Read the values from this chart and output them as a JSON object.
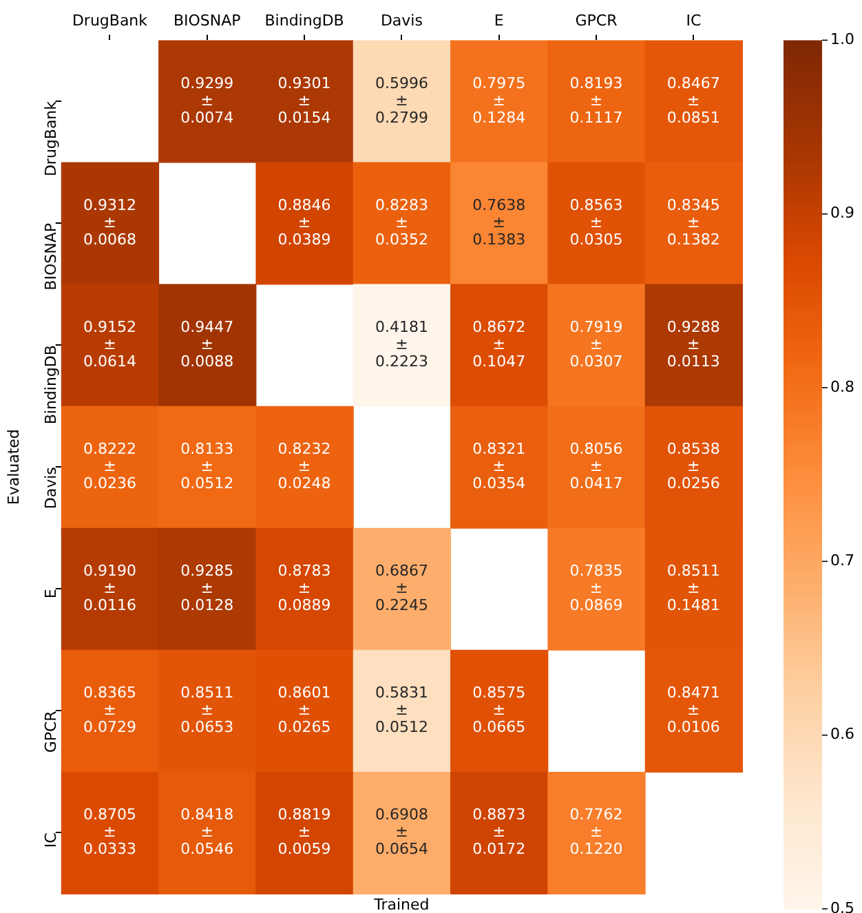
{
  "chart_data": {
    "type": "heatmap",
    "xlabel": "Trained",
    "ylabel": "Evaluated",
    "categories": [
      "DrugBank",
      "BIOSNAP",
      "BindingDB",
      "Davis",
      "E",
      "GPCR",
      "IC"
    ],
    "y_categories": [
      "DrugBank",
      "BIOSNAP",
      "BindingDB",
      "Davis",
      "E",
      "GPCR",
      "IC"
    ],
    "cells": [
      [
        null,
        0.9299,
        0.9301,
        0.5996,
        0.7975,
        0.8193,
        0.8467
      ],
      [
        0.9312,
        null,
        0.8846,
        0.8283,
        0.7638,
        0.8563,
        0.8345
      ],
      [
        0.9152,
        0.9447,
        null,
        0.4181,
        0.8672,
        0.7919,
        0.9288
      ],
      [
        0.8222,
        0.8133,
        0.8232,
        null,
        0.8321,
        0.8056,
        0.8538
      ],
      [
        0.919,
        0.9285,
        0.8783,
        0.6867,
        null,
        0.7835,
        0.8511
      ],
      [
        0.8365,
        0.8511,
        0.8601,
        0.5831,
        0.8575,
        null,
        0.8471
      ],
      [
        0.8705,
        0.8418,
        0.8819,
        0.6908,
        0.8873,
        0.7762,
        null
      ]
    ],
    "cell_labels": [
      [
        null,
        "0.9299\n±\n0.0074",
        "0.9301\n±\n0.0154",
        "0.5996\n±\n0.2799",
        "0.7975\n±\n0.1284",
        "0.8193\n±\n0.1117",
        "0.8467\n±\n0.0851"
      ],
      [
        "0.9312\n±\n0.0068",
        null,
        "0.8846\n±\n0.0389",
        "0.8283\n±\n0.0352",
        "0.7638\n±\n0.1383",
        "0.8563\n±\n0.0305",
        "0.8345\n±\n0.1382"
      ],
      [
        "0.9152\n±\n0.0614",
        "0.9447\n±\n0.0088",
        null,
        "0.4181\n±\n0.2223",
        "0.8672\n±\n0.1047",
        "0.7919\n±\n0.0307",
        "0.9288\n±\n0.0113"
      ],
      [
        "0.8222\n±\n0.0236",
        "0.8133\n±\n0.0512",
        "0.8232\n±\n0.0248",
        null,
        "0.8321\n±\n0.0354",
        "0.8056\n±\n0.0417",
        "0.8538\n±\n0.0256"
      ],
      [
        "0.9190\n±\n0.0116",
        "0.9285\n±\n0.0128",
        "0.8783\n±\n0.0889",
        "0.6867\n±\n0.2245",
        null,
        "0.7835\n±\n0.0869",
        "0.8511\n±\n0.1481"
      ],
      [
        "0.8365\n±\n0.0729",
        "0.8511\n±\n0.0653",
        "0.8601\n±\n0.0265",
        "0.5831\n±\n0.0512",
        "0.8575\n±\n0.0665",
        null,
        "0.8471\n±\n0.0106"
      ],
      [
        "0.8705\n±\n0.0333",
        "0.8418\n±\n0.0546",
        "0.8819\n±\n0.0059",
        "0.6908\n±\n0.0654",
        "0.8873\n±\n0.0172",
        "0.7762\n±\n0.1220",
        null
      ]
    ],
    "clim": [
      0.5,
      1.0
    ],
    "cticks": [
      0.5,
      0.6,
      0.7,
      0.8,
      0.9,
      {
        "value": 1.0,
        "label": "1.0"
      }
    ]
  }
}
